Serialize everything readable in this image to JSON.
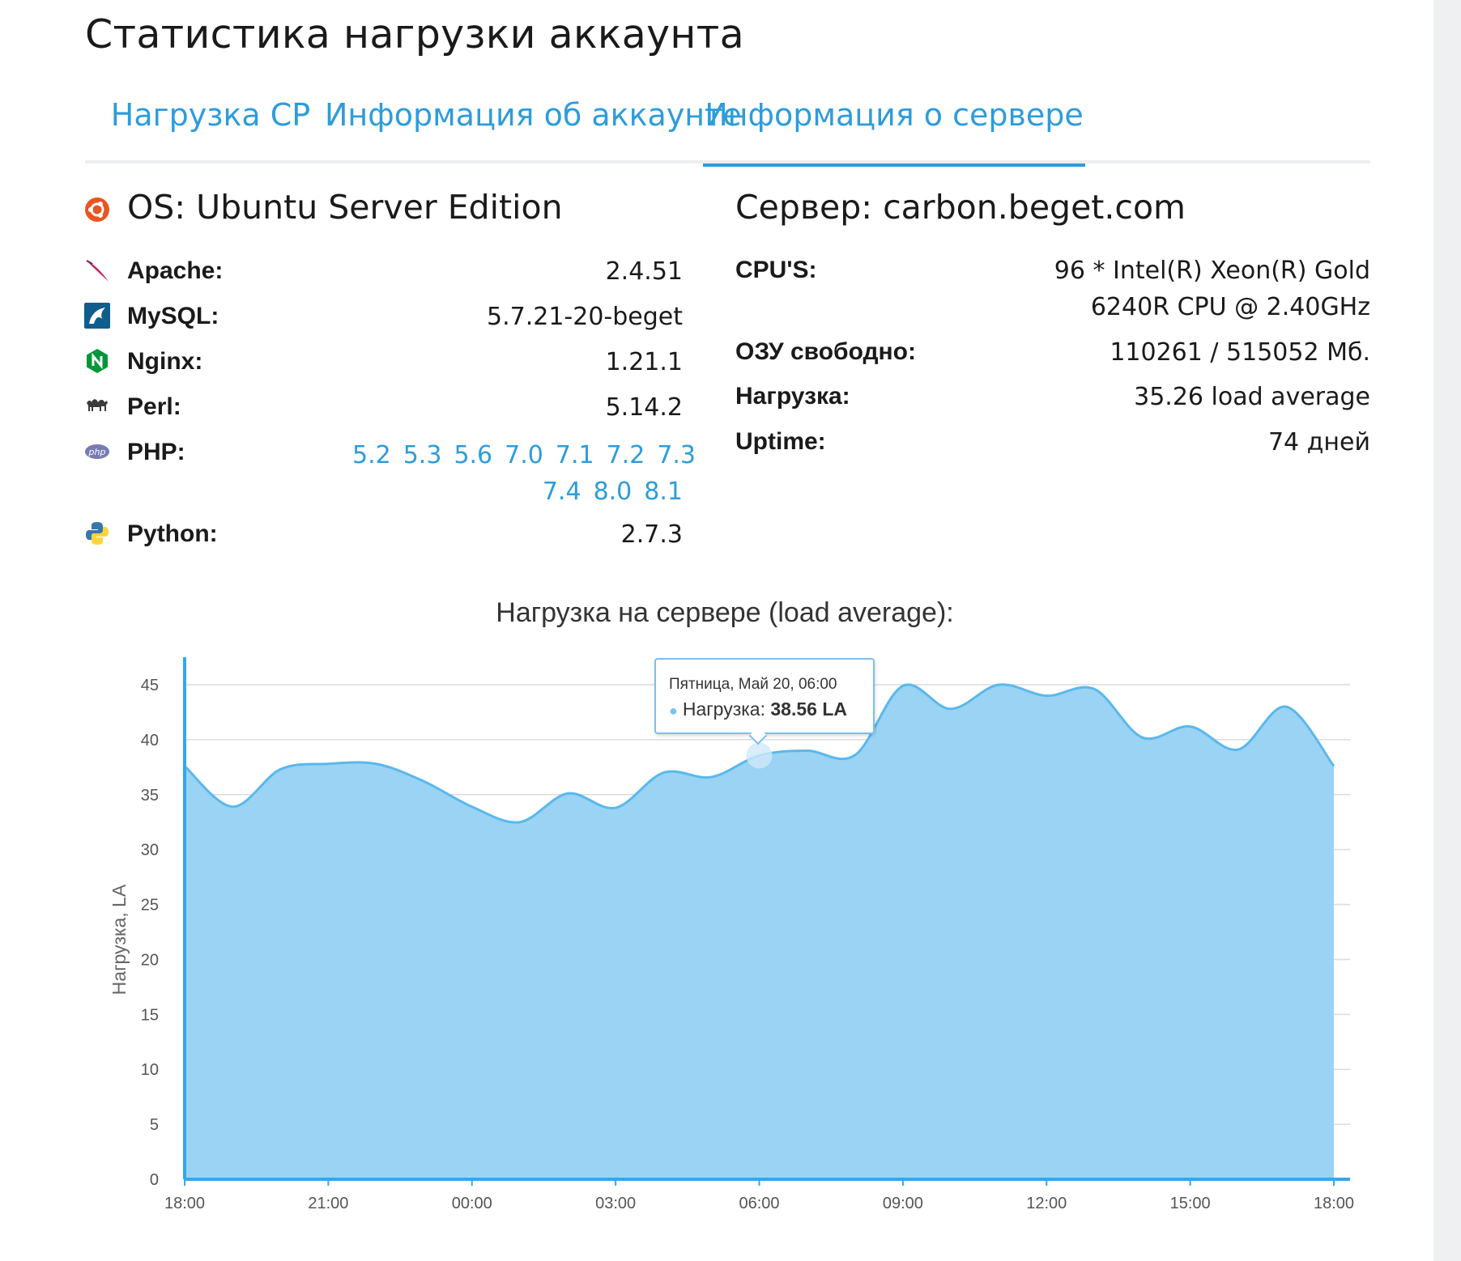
{
  "page": {
    "title": "Статистика нагрузки аккаунта"
  },
  "tabs": [
    {
      "label": "Нагрузка CP",
      "active": false
    },
    {
      "label": "Информация об аккаунте",
      "active": false
    },
    {
      "label": "Информация о сервере",
      "active": true
    }
  ],
  "software": {
    "os_label": "OS: Ubuntu Server Edition",
    "rows": [
      {
        "name": "Apache:",
        "value": "2.4.51",
        "icon": "apache-feather-icon"
      },
      {
        "name": "MySQL:",
        "value": "5.7.21-20-beget",
        "icon": "mysql-dolphin-icon"
      },
      {
        "name": "Nginx:",
        "value": "1.21.1",
        "icon": "nginx-icon"
      },
      {
        "name": "Perl:",
        "value": "5.14.2",
        "icon": "perl-camel-icon"
      },
      {
        "name": "PHP:",
        "icon": "php-icon"
      },
      {
        "name": "Python:",
        "value": "2.7.3",
        "icon": "python-icon"
      }
    ],
    "php_versions": [
      "5.2",
      "5.3",
      "5.6",
      "7.0",
      "7.1",
      "7.2",
      "7.3",
      "7.4",
      "8.0",
      "8.1"
    ]
  },
  "server": {
    "title": "Сервер: carbon.beget.com",
    "rows": [
      {
        "name": "CPU'S:",
        "value_line1": "96 * Intel(R) Xeon(R) Gold",
        "value_line2": "6240R CPU @ 2.40GHz"
      },
      {
        "name": "ОЗУ свободно:",
        "value": "110261 / 515052 Мб."
      },
      {
        "name": "Нагрузка:",
        "value": "35.26 load average"
      },
      {
        "name": "Uptime:",
        "value": "74 дней"
      }
    ]
  },
  "tooltip": {
    "date": "Пятница, Май 20, 06:00",
    "series": "Нагрузка:",
    "value": "38.56 LA"
  },
  "colors": {
    "accent": "#2d9cdb",
    "area": "#9ad3f4",
    "line": "#5ab8ec"
  },
  "chart_data": {
    "type": "area",
    "title": "Нагрузка на сервере (load average):",
    "ylabel": "Нагрузка, LA",
    "xlabel": "",
    "ylim": [
      0,
      45
    ],
    "yticks": [
      0,
      5,
      10,
      15,
      20,
      25,
      30,
      35,
      40,
      45
    ],
    "xtick_labels": [
      "18:00",
      "21:00",
      "00:00",
      "03:00",
      "06:00",
      "09:00",
      "12:00",
      "15:00",
      "18:00"
    ],
    "grid": true,
    "series": [
      {
        "name": "Нагрузка",
        "x_hours": [
          0,
          1,
          2,
          3,
          4,
          5,
          6,
          7,
          8,
          9,
          10,
          11,
          12,
          13,
          14,
          15,
          16,
          17,
          18,
          19,
          20,
          21,
          22,
          23,
          24
        ],
        "values": [
          37.6,
          33.9,
          37.3,
          37.8,
          37.8,
          36.2,
          33.9,
          32.5,
          35.1,
          33.8,
          37.0,
          36.6,
          38.56,
          39.0,
          38.6,
          44.9,
          42.8,
          45.0,
          44.0,
          44.6,
          40.2,
          41.2,
          39.1,
          43.0,
          37.6
        ]
      }
    ]
  }
}
